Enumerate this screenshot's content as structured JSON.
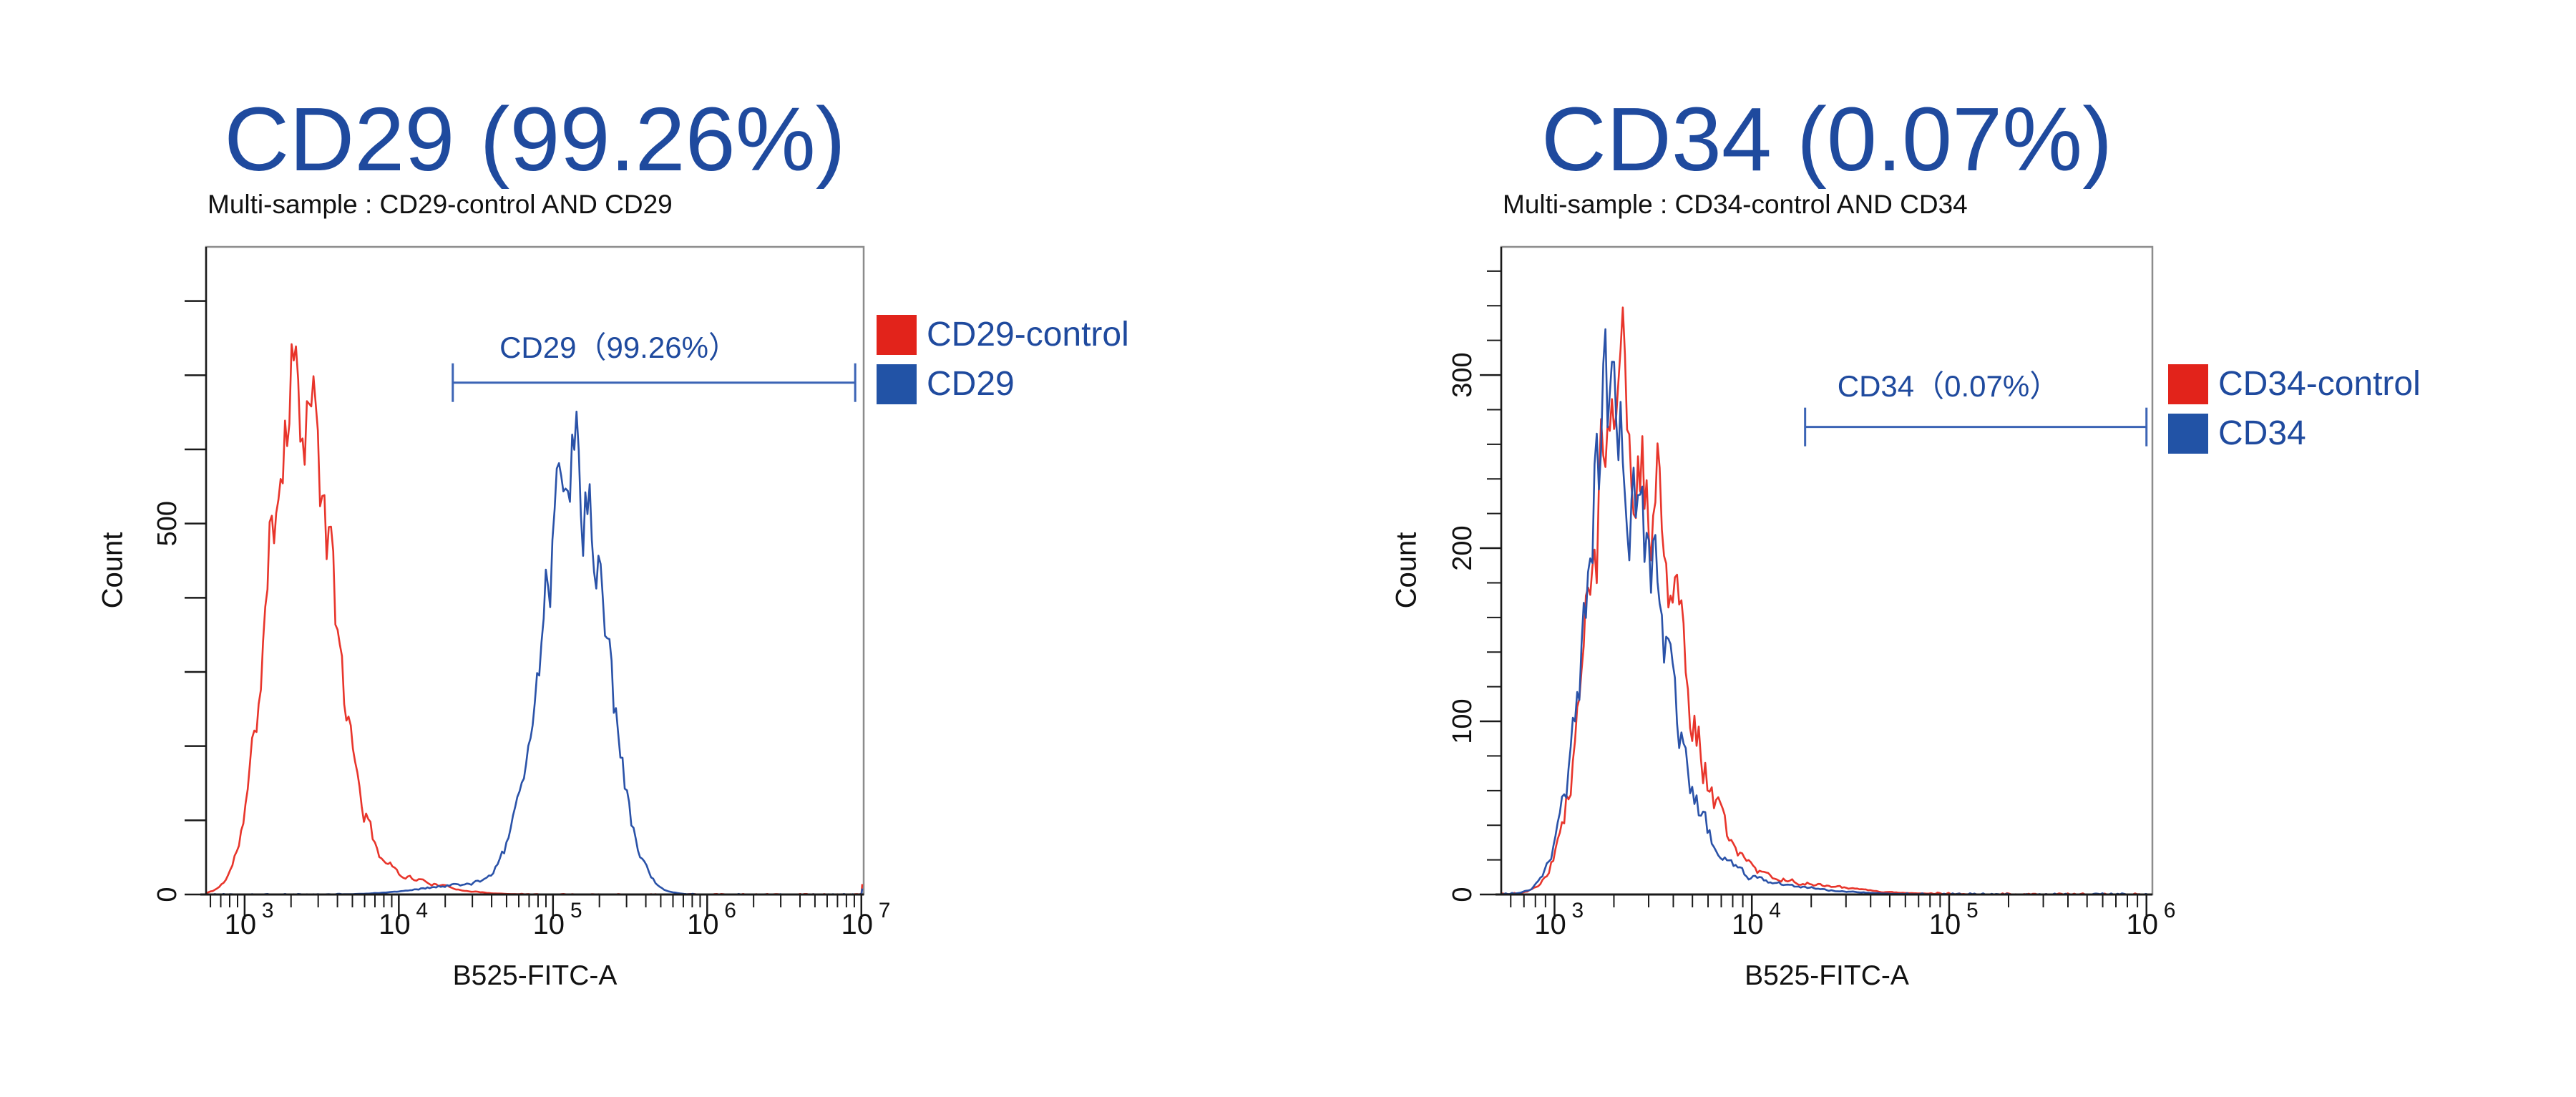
{
  "colors": {
    "title_blue": "#1f4a9e",
    "legend_text_blue": "#1f4a9e",
    "gate_line_blue": "#3c64b5",
    "swatch_red": "#e2231b",
    "swatch_blue": "#2253a6",
    "curve_red": "#e8352b",
    "curve_blue": "#2a52a8",
    "axis_black": "#1a1a1a",
    "frame_gray": "#8c8c8c"
  },
  "chart_data": [
    {
      "type": "area-histogram-overlay",
      "title": "CD29 (99.26%)",
      "subtitle": "Multi-sample : CD29-control AND CD29",
      "xlabel": "B525-FITC-A",
      "ylabel": "Count",
      "x_axis": {
        "scale": "log10",
        "base_label": "10",
        "min_log": 2.75,
        "max_log": 7.015,
        "decade_exponents": [
          "3",
          "4",
          "5",
          "6",
          "7"
        ],
        "decades": [
          3,
          4,
          5,
          6,
          7
        ]
      },
      "y_axis": {
        "min": 0,
        "max": 873,
        "tick_step": 100,
        "major_step": 100,
        "labeled_ticks": [
          0,
          500
        ],
        "labels": [
          "0",
          "500"
        ]
      },
      "series": [
        {
          "name": "CD29-control",
          "color": "#e8352b",
          "noise": 0.13,
          "seed": 11,
          "edge_spike_count": 14,
          "components": [
            {
              "center_log": 3.33,
              "peak_count": 720,
              "sigma_left": 0.17,
              "sigma_right": 0.22
            },
            {
              "center_log": 3.92,
              "peak_count": 24,
              "sigma_left": 0.3,
              "sigma_right": 0.3
            }
          ]
        },
        {
          "name": "CD29",
          "color": "#2a52a8",
          "noise": 0.13,
          "seed": 5,
          "edge_spike_count": 8,
          "components": [
            {
              "center_log": 5.13,
              "peak_count": 595,
              "sigma_left": 0.2,
              "sigma_right": 0.2
            },
            {
              "center_log": 4.45,
              "peak_count": 13,
              "sigma_left": 0.3,
              "sigma_right": 0.25
            }
          ]
        }
      ],
      "gate": {
        "label": "CD29（99.26%）",
        "from_log": 4.35,
        "to_log": 6.96,
        "at_count": 690,
        "percent": "99.26%"
      },
      "legend": [
        {
          "label": "CD29-control",
          "color": "#e2231b"
        },
        {
          "label": "CD29",
          "color": "#2253a6"
        }
      ]
    },
    {
      "type": "area-histogram-overlay",
      "title": "CD34 (0.07%)",
      "subtitle": "Multi-sample : CD34-control AND CD34",
      "xlabel": "B525-FITC-A",
      "ylabel": "Count",
      "x_axis": {
        "scale": "log10",
        "base_label": "10",
        "min_log": 2.73,
        "max_log": 6.03,
        "decade_exponents": [
          "3",
          "4",
          "5",
          "6"
        ],
        "decades": [
          3,
          4,
          5,
          6
        ]
      },
      "y_axis": {
        "min": 0,
        "max": 374,
        "tick_step": 20,
        "major_step": 100,
        "labeled_ticks": [
          0,
          100,
          200,
          300
        ],
        "labels": [
          "0",
          "100",
          "200",
          "300"
        ]
      },
      "series": [
        {
          "name": "CD34-control",
          "color": "#e8352b",
          "noise": 0.16,
          "seed": 17,
          "edge_spike_count": 0,
          "components": [
            {
              "center_log": 3.34,
              "peak_count": 300,
              "sigma_left": 0.15,
              "sigma_right": 0.24
            },
            {
              "center_log": 3.9,
              "peak_count": 10,
              "sigma_left": 0.3,
              "sigma_right": 0.4
            }
          ]
        },
        {
          "name": "CD34",
          "color": "#2a52a8",
          "noise": 0.16,
          "seed": 23,
          "edge_spike_count": 0,
          "components": [
            {
              "center_log": 3.3,
              "peak_count": 285,
              "sigma_left": 0.14,
              "sigma_right": 0.22
            },
            {
              "center_log": 3.85,
              "peak_count": 9,
              "sigma_left": 0.3,
              "sigma_right": 0.35
            }
          ]
        }
      ],
      "gate": {
        "label": "CD34（0.07%）",
        "from_log": 4.27,
        "to_log": 6.0,
        "at_count": 270,
        "percent": "0.07%"
      },
      "legend": [
        {
          "label": "CD34-control",
          "color": "#e2231b"
        },
        {
          "label": "CD34",
          "color": "#2253a6"
        }
      ]
    }
  ]
}
